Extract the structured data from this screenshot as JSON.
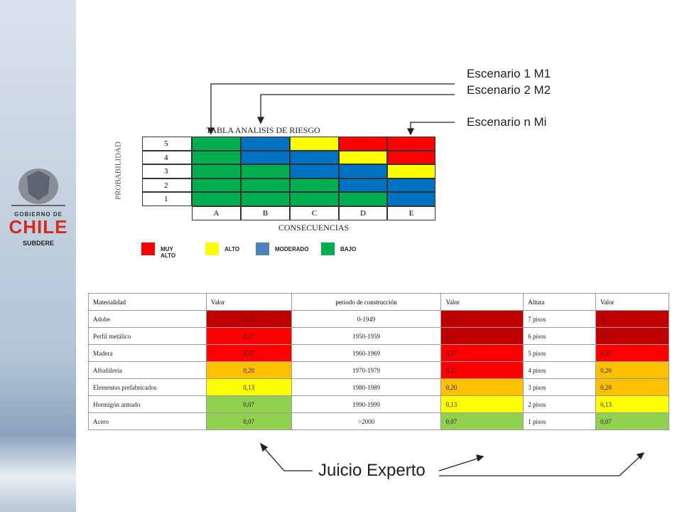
{
  "logo": {
    "top": "GOBIERNO DE",
    "main": "CHILE",
    "sub": "SUBDERE"
  },
  "annotations": [
    "Escenario 1 M1",
    "Escenario 2 M2",
    "Escenario n Mi"
  ],
  "matrix": {
    "title": "TABLA ANALISIS DE RIESGO",
    "y_label": "PROBABILIDAD",
    "x_label": "CONSECUENCIAS",
    "row_labels": [
      "5",
      "4",
      "3",
      "2",
      "1"
    ],
    "col_labels": [
      "A",
      "B",
      "C",
      "D",
      "E"
    ],
    "cells": [
      [
        "#00b050",
        "#0070c0",
        "#ffff00",
        "#ff0000",
        "#ff0000"
      ],
      [
        "#00b050",
        "#0070c0",
        "#0070c0",
        "#ffff00",
        "#ff0000"
      ],
      [
        "#00b050",
        "#00b050",
        "#0070c0",
        "#0070c0",
        "#ffff00"
      ],
      [
        "#00b050",
        "#00b050",
        "#00b050",
        "#0070c0",
        "#0070c0"
      ],
      [
        "#00b050",
        "#00b050",
        "#00b050",
        "#00b050",
        "#0070c0"
      ]
    ]
  },
  "legend": [
    {
      "label": "MUY ALTO",
      "color": "#ff0000"
    },
    {
      "label": "ALTO",
      "color": "#ffff00"
    },
    {
      "label": "MODERADO",
      "color": "#4f81bd"
    },
    {
      "label": "BAJO",
      "color": "#00b050"
    }
  ],
  "table": {
    "header": [
      "Materialidad",
      "Valor",
      "periodo de construcción",
      "Valor",
      "Altura",
      "Valor"
    ],
    "rows": [
      [
        "Adobe",
        "0,33",
        "0-1949",
        "0,33",
        "7 pisos",
        "0,33"
      ],
      [
        "Perfil metálico",
        "0,27",
        "1950-1959",
        "0,33",
        "6 pisos",
        "0,33"
      ],
      [
        "Madera",
        "0,27",
        "1960-1969",
        "0,27",
        "5 pisos",
        "0,27"
      ],
      [
        "Albañilería",
        "0,20",
        "1970-1979",
        "0,27",
        "4 pisos",
        "0,20"
      ],
      [
        "Elementos prefabricados",
        "0,13",
        "1980-1989",
        "0,20",
        "3 pisos",
        "0,20"
      ],
      [
        "Hormigón armado",
        "0,07",
        "1990-1999",
        "0,13",
        "2 pisos",
        "0,13"
      ],
      [
        "Acero",
        "0,07",
        ">2000",
        "0,07",
        "1 pisos",
        "0,07"
      ]
    ],
    "value_colors": [
      [
        "#c00000",
        "#c00000",
        "#c00000"
      ],
      [
        "#ff0000",
        "#c00000",
        "#c00000"
      ],
      [
        "#ff0000",
        "#ff0000",
        "#ff0000"
      ],
      [
        "#ffc000",
        "#ff0000",
        "#ffc000"
      ],
      [
        "#ffff00",
        "#ffc000",
        "#ffc000"
      ],
      [
        "#92d050",
        "#ffff00",
        "#ffff00"
      ],
      [
        "#92d050",
        "#92d050",
        "#92d050"
      ]
    ]
  },
  "expert": "Juicio Experto"
}
